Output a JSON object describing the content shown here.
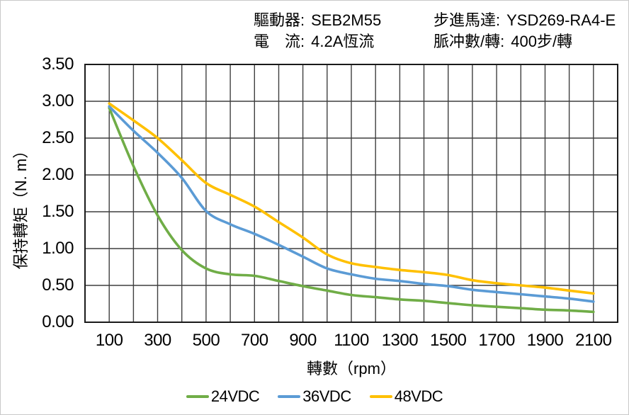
{
  "header": {
    "driver": {
      "label": "驅動器:",
      "value": "SEB2M55"
    },
    "current": {
      "label": "電　流:",
      "value": "4.2A恆流"
    },
    "motor": {
      "label": "步進馬達:",
      "value": "YSD269-RA4-E"
    },
    "pulses": {
      "label": "脈冲數/轉:",
      "value": "400步/轉"
    }
  },
  "chart_data": {
    "type": "line",
    "title": "",
    "xlabel": "轉數（rpm）",
    "ylabel": "保持轉矩（N. m）",
    "xlim": [
      0,
      2200
    ],
    "ylim": [
      0,
      3.5
    ],
    "x_grid_step": 100,
    "y_grid_step": 0.5,
    "grid": true,
    "grid_color": "#3f3f3f",
    "border_color": "#1a1a1a",
    "legend_position": "bottom",
    "x": [
      100,
      200,
      300,
      400,
      500,
      600,
      700,
      800,
      900,
      1000,
      1100,
      1200,
      1300,
      1400,
      1500,
      1600,
      1700,
      1800,
      1900,
      2000,
      2100
    ],
    "series": [
      {
        "name": "24VDC",
        "color": "#70AD47",
        "values": [
          2.91,
          2.12,
          1.45,
          0.98,
          0.73,
          0.65,
          0.63,
          0.56,
          0.49,
          0.43,
          0.37,
          0.34,
          0.31,
          0.29,
          0.26,
          0.23,
          0.21,
          0.19,
          0.17,
          0.16,
          0.14
        ]
      },
      {
        "name": "36VDC",
        "color": "#5B9BD5",
        "values": [
          2.93,
          2.6,
          2.3,
          1.96,
          1.51,
          1.33,
          1.2,
          1.05,
          0.89,
          0.73,
          0.65,
          0.59,
          0.56,
          0.52,
          0.49,
          0.44,
          0.41,
          0.38,
          0.35,
          0.32,
          0.28
        ]
      },
      {
        "name": "48VDC",
        "color": "#FFC000",
        "values": [
          2.97,
          2.74,
          2.5,
          2.2,
          1.89,
          1.73,
          1.57,
          1.36,
          1.15,
          0.92,
          0.8,
          0.75,
          0.71,
          0.68,
          0.64,
          0.57,
          0.53,
          0.5,
          0.47,
          0.43,
          0.39
        ]
      }
    ],
    "x_ticks": [
      {
        "label": "100",
        "value": 100
      },
      {
        "label": "300",
        "value": 300
      },
      {
        "label": "500",
        "value": 500
      },
      {
        "label": "700",
        "value": 700
      },
      {
        "label": "900",
        "value": 900
      },
      {
        "label": "1100",
        "value": 1100
      },
      {
        "label": "1300",
        "value": 1300
      },
      {
        "label": "1500",
        "value": 1500
      },
      {
        "label": "1700",
        "value": 1700
      },
      {
        "label": "1900",
        "value": 1900
      },
      {
        "label": "2100",
        "value": 2100
      }
    ],
    "y_ticks": [
      {
        "label": "3.50",
        "value": 3.5
      },
      {
        "label": "3.00",
        "value": 3.0
      },
      {
        "label": "2.50",
        "value": 2.5
      },
      {
        "label": "2.00",
        "value": 2.0
      },
      {
        "label": "1.50",
        "value": 1.5
      },
      {
        "label": "1.00",
        "value": 1.0
      },
      {
        "label": "0.50",
        "value": 0.5
      },
      {
        "label": "0.00",
        "value": 0.0
      }
    ]
  }
}
